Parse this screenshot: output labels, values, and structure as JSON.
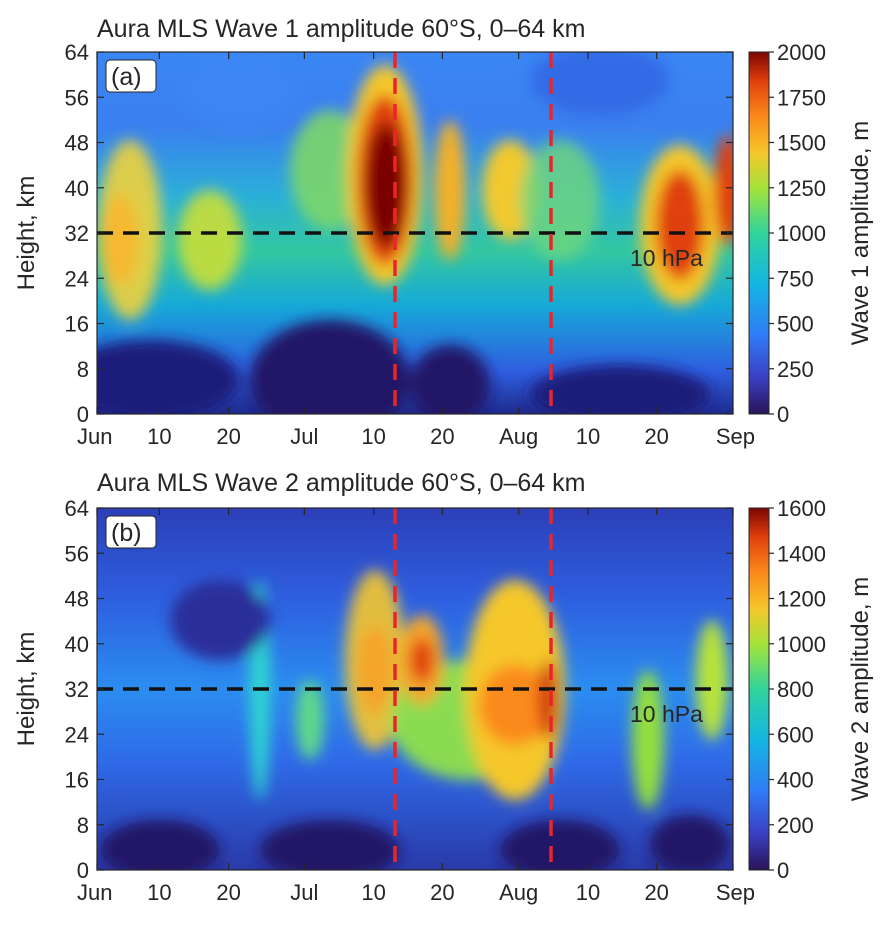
{
  "figure": {
    "panels": [
      {
        "id": "a",
        "title": "Aura MLS Wave 1 amplitude 60°S, 0–64 km",
        "panel_label": "(a)",
        "ylabel": "Height, km",
        "colorbar_label": "Wave 1 amplitude, m",
        "annotation": "10 hPa",
        "y_ticks": [
          "64",
          "56",
          "48",
          "40",
          "32",
          "24",
          "16",
          "8",
          "0"
        ],
        "x_ticks": [
          "Jun",
          "10",
          "20",
          "Jul",
          "10",
          "20",
          "Aug",
          "10",
          "20",
          "Sep"
        ],
        "colorbar_ticks": [
          "2000",
          "1750",
          "1500",
          "1250",
          "1000",
          "750",
          "500",
          "250",
          "0"
        ]
      },
      {
        "id": "b",
        "title": "Aura MLS Wave 2 amplitude 60°S, 0–64 km",
        "panel_label": "(b)",
        "ylabel": "Height, km",
        "colorbar_label": "Wave 2 amplitude, m",
        "annotation": "10 hPa",
        "y_ticks": [
          "64",
          "56",
          "48",
          "40",
          "32",
          "24",
          "16",
          "8",
          "0"
        ],
        "x_ticks": [
          "Jun",
          "10",
          "20",
          "Jul",
          "10",
          "20",
          "Aug",
          "10",
          "20",
          "Sep"
        ],
        "colorbar_ticks": [
          "1600",
          "1400",
          "1200",
          "1000",
          "800",
          "600",
          "400",
          "200",
          "0"
        ]
      }
    ]
  },
  "chart_data": [
    {
      "type": "heatmap",
      "title": "Aura MLS Wave 1 amplitude 60°S, 0–64 km",
      "xlabel": "",
      "ylabel": "Height, km",
      "xlim": [
        "2020-06-01",
        "2020-09-01"
      ],
      "ylim": [
        0,
        64
      ],
      "zlabel": "Wave 1 amplitude, m",
      "zlim": [
        0,
        2000
      ],
      "colormap": "jet",
      "hlines": [
        {
          "y": 32,
          "label": "10 hPa",
          "color": "#000000",
          "style": "dashed"
        }
      ],
      "vlines": [
        {
          "x": "2020-07-14",
          "color": "#e8262a",
          "style": "dashed"
        },
        {
          "x": "2020-08-05",
          "color": "#e8262a",
          "style": "dashed"
        }
      ],
      "features": [
        {
          "x": "2020-06-04",
          "y": 32,
          "value": 1250
        },
        {
          "x": "2020-06-20",
          "y": 28,
          "value": 1000
        },
        {
          "x": "2020-07-12",
          "y": 40,
          "value": 2000
        },
        {
          "x": "2020-07-22",
          "y": 38,
          "value": 1500
        },
        {
          "x": "2020-08-01",
          "y": 38,
          "value": 1300
        },
        {
          "x": "2020-08-24",
          "y": 32,
          "value": 1700
        },
        {
          "x": "2020-08-31",
          "y": 38,
          "value": 1600
        },
        {
          "x": "2020-07-05",
          "y": 5,
          "value": 0
        }
      ]
    },
    {
      "type": "heatmap",
      "title": "Aura MLS Wave 2 amplitude 60°S, 0–64 km",
      "xlabel": "",
      "ylabel": "Height, km",
      "xlim": [
        "2020-06-01",
        "2020-09-01"
      ],
      "ylim": [
        0,
        64
      ],
      "zlabel": "Wave 2 amplitude, m",
      "zlim": [
        0,
        1600
      ],
      "colormap": "jet",
      "hlines": [
        {
          "y": 32,
          "label": "10 hPa",
          "color": "#000000",
          "style": "dashed"
        }
      ],
      "vlines": [
        {
          "x": "2020-07-14",
          "color": "#e8262a",
          "style": "dashed"
        },
        {
          "x": "2020-08-05",
          "color": "#e8262a",
          "style": "dashed"
        }
      ],
      "features": [
        {
          "x": "2020-07-10",
          "y": 40,
          "value": 900
        },
        {
          "x": "2020-07-17",
          "y": 37,
          "value": 1200
        },
        {
          "x": "2020-07-30",
          "y": 29,
          "value": 1200
        },
        {
          "x": "2020-08-05",
          "y": 30,
          "value": 1400
        },
        {
          "x": "2020-08-19",
          "y": 27,
          "value": 800
        },
        {
          "x": "2020-08-29",
          "y": 35,
          "value": 900
        }
      ]
    }
  ]
}
